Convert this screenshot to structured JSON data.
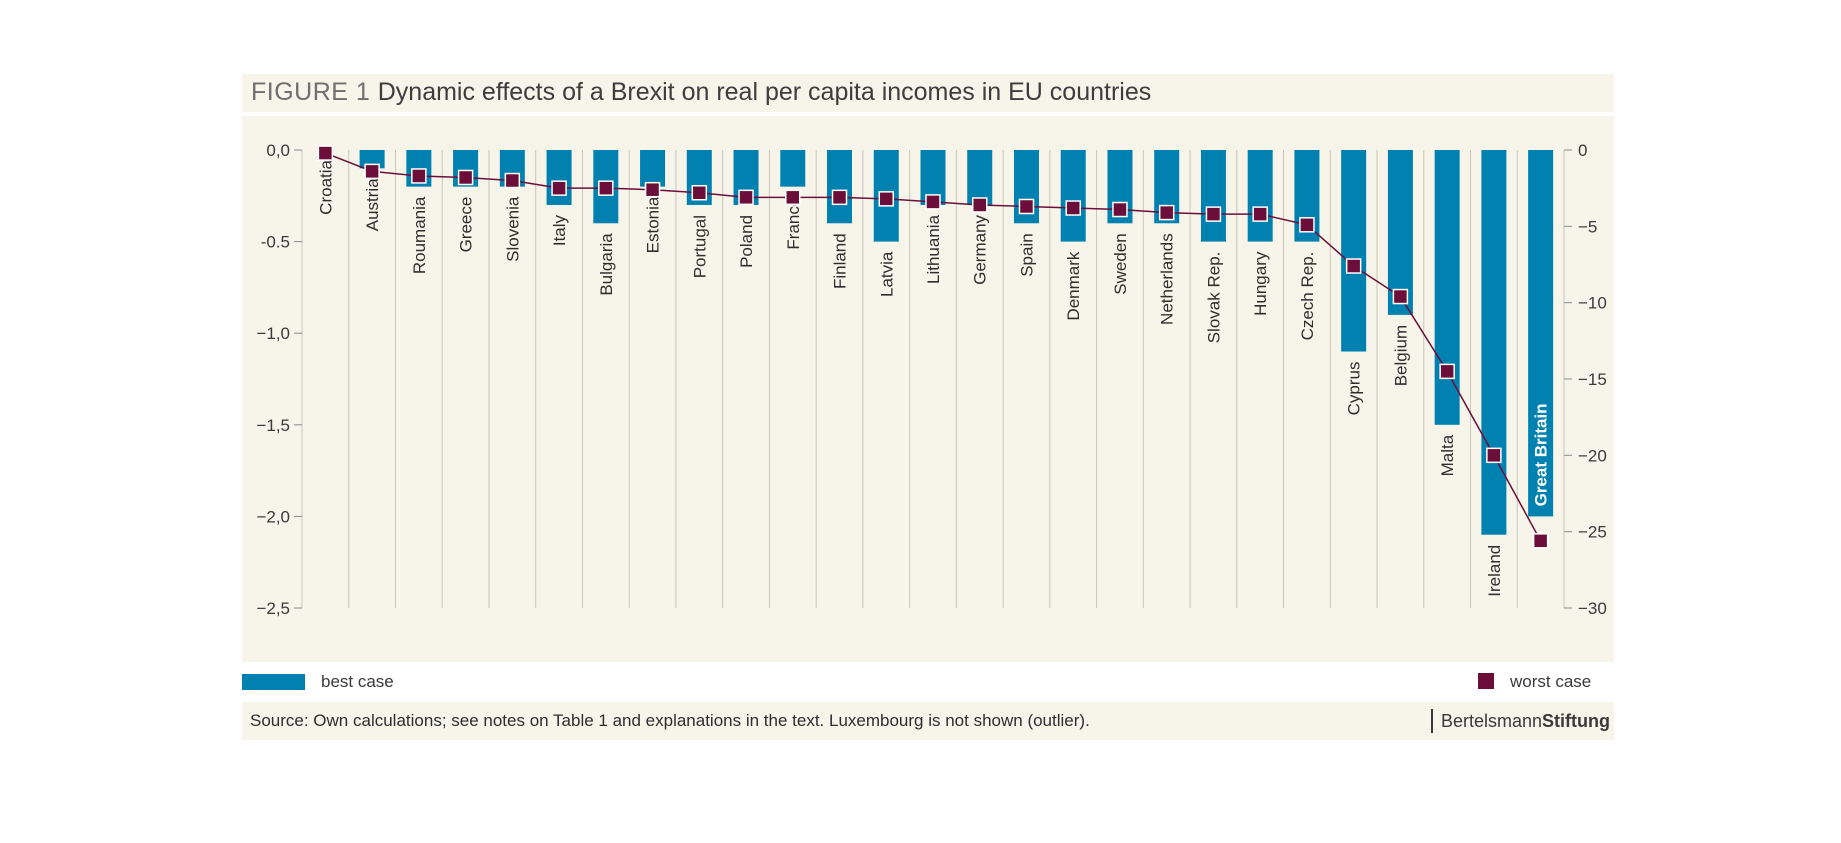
{
  "title": {
    "prefix": "FIGURE 1",
    "text": "Dynamic effects of a Brexit on real per capita incomes in EU countries"
  },
  "colors": {
    "bar": "#0081b0",
    "marker": "#6b0f3a",
    "line": "#6b0f3a",
    "background": "#f7f4ea"
  },
  "chart_data": {
    "type": "bar",
    "categories": [
      "Croatia",
      "Austria",
      "Roumania",
      "Greece",
      "Slovenia",
      "Italy",
      "Bulgaria",
      "Estonia",
      "Portugal",
      "Poland",
      "France",
      "Finland",
      "Latvia",
      "Lithuania",
      "Germany",
      "Spain",
      "Denmark",
      "Sweden",
      "Netherlands",
      "Slovak Rep.",
      "Hungary",
      "Czech Rep.",
      "Cyprus",
      "Belgium",
      "Malta",
      "Ireland",
      "Great Britain"
    ],
    "series": [
      {
        "name": "best case",
        "type": "bar",
        "axis": "left",
        "values": [
          0.0,
          -0.1,
          -0.2,
          -0.2,
          -0.2,
          -0.3,
          -0.4,
          -0.2,
          -0.3,
          -0.3,
          -0.2,
          -0.4,
          -0.5,
          -0.3,
          -0.3,
          -0.4,
          -0.5,
          -0.4,
          -0.4,
          -0.5,
          -0.5,
          -0.5,
          -1.1,
          -0.9,
          -1.5,
          -2.1,
          -2.0
        ]
      },
      {
        "name": "worst case",
        "type": "line",
        "axis": "right",
        "values": [
          -0.2,
          -1.4,
          -1.7,
          -1.8,
          -2.0,
          -2.5,
          -2.5,
          -2.6,
          -2.8,
          -3.1,
          -3.1,
          -3.1,
          -3.2,
          -3.4,
          -3.6,
          -3.7,
          -3.8,
          -3.9,
          -4.1,
          -4.2,
          -4.2,
          -4.9,
          -7.6,
          -9.6,
          -14.5,
          -20.0,
          -25.6
        ]
      }
    ],
    "left_axis": {
      "ylim": [
        -2.5,
        0
      ],
      "ticks": [
        "0,0",
        "-0.5",
        "−1,0",
        "−1,5",
        "−2,0",
        "−2,5"
      ]
    },
    "right_axis": {
      "ylim": [
        -30,
        0
      ],
      "ticks": [
        "0",
        "−5",
        "−10",
        "−15",
        "−20",
        "−25",
        "−30"
      ]
    },
    "label_inside_bar": "Great Britain",
    "grid": "vertical"
  },
  "legend": {
    "best_label": "best case",
    "worst_label": "worst case"
  },
  "source": {
    "text": "Source: Own calculations; see notes on Table 1 and explanations in the text. Luxembourg is not shown (outlier).",
    "brand_light": "Bertelsmann",
    "brand_bold": "Stiftung"
  }
}
